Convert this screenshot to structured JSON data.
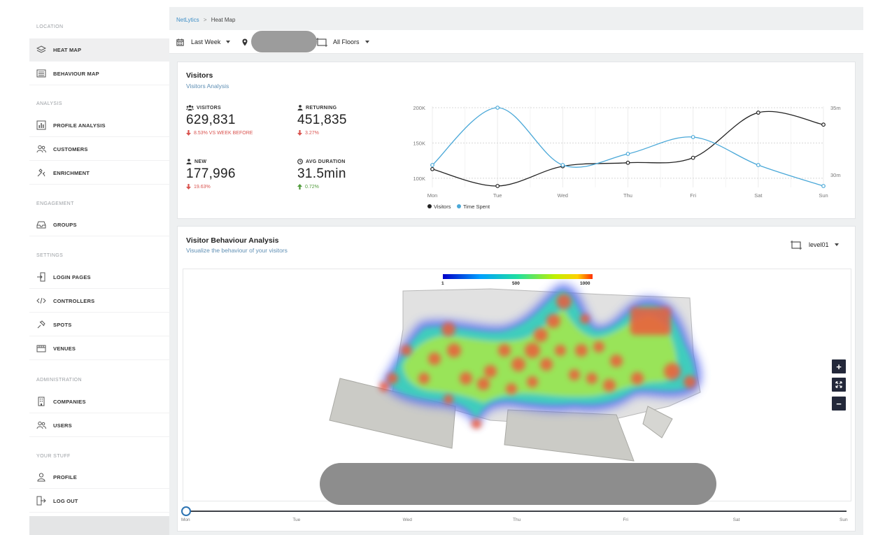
{
  "sidebar": {
    "sections": [
      {
        "title": "LOCATION",
        "items": [
          {
            "label": "HEAT MAP",
            "icon": "layers-icon",
            "active": true
          },
          {
            "label": "BEHAVIOUR MAP",
            "icon": "list-icon"
          }
        ]
      },
      {
        "title": "ANALYSIS",
        "items": [
          {
            "label": "PROFILE ANALYSIS",
            "icon": "bar-chart-icon"
          },
          {
            "label": "CUSTOMERS",
            "icon": "users-icon"
          },
          {
            "label": "ENRICHMENT",
            "icon": "tools-icon"
          }
        ]
      },
      {
        "title": "ENGAGEMENT",
        "items": [
          {
            "label": "GROUPS",
            "icon": "inbox-icon"
          }
        ]
      },
      {
        "title": "SETTINGS",
        "items": [
          {
            "label": "LOGIN PAGES",
            "icon": "login-icon"
          },
          {
            "label": "CONTROLLERS",
            "icon": "code-icon"
          },
          {
            "label": "SPOTS",
            "icon": "pin-icon"
          },
          {
            "label": "VENUES",
            "icon": "store-icon"
          }
        ]
      },
      {
        "title": "ADMINISTRATION",
        "items": [
          {
            "label": "COMPANIES",
            "icon": "building-icon"
          },
          {
            "label": "USERS",
            "icon": "users-icon"
          }
        ]
      },
      {
        "title": "YOUR STUFF",
        "items": [
          {
            "label": "PROFILE",
            "icon": "person-icon"
          },
          {
            "label": "LOG OUT",
            "icon": "logout-icon"
          }
        ]
      }
    ]
  },
  "breadcrumb": {
    "root": "NetLytics",
    "separator": ">",
    "current": "Heat Map"
  },
  "filters": {
    "period": "Last Week",
    "floor": "All Floors"
  },
  "visitors_card": {
    "title": "Visitors",
    "subtitle": "Visitors Analysis",
    "kpis": {
      "visitors": {
        "label": "VISITORS",
        "value": "629,831",
        "delta": "8.53% VS WEEK BEFORE",
        "direction": "down"
      },
      "returning": {
        "label": "RETURNING",
        "value": "451,835",
        "delta": "3.27%",
        "direction": "down"
      },
      "new": {
        "label": "NEW",
        "value": "177,996",
        "delta": "19.63%",
        "direction": "down"
      },
      "avg_duration": {
        "label": "AVG DURATION",
        "value": "31.5min",
        "delta": "0.72%",
        "direction": "up"
      }
    }
  },
  "chart_data": {
    "type": "line",
    "categories": [
      "Mon",
      "Tue",
      "Wed",
      "Thu",
      "Fri",
      "Sat",
      "Sun"
    ],
    "y_left_ticks": [
      "200K",
      "150K",
      "100K"
    ],
    "y_right_ticks": [
      "35m",
      "30m"
    ],
    "ylim_left": [
      87000,
      200000
    ],
    "ylim_right": [
      29300,
      35000
    ],
    "series": [
      {
        "name": "Visitors",
        "color": "#222222",
        "axis": "left",
        "values": [
          113000,
          89000,
          117000,
          122000,
          129000,
          193000,
          176000
        ]
      },
      {
        "name": "Time Spent",
        "color": "#4aa8d8",
        "axis": "right",
        "values": [
          30.9,
          35.0,
          30.9,
          31.7,
          32.9,
          30.9,
          29.4
        ]
      }
    ],
    "legend_position": "bottom",
    "grid": true
  },
  "behaviour_card": {
    "title": "Visitor Behaviour Analysis",
    "subtitle": "Visualize the behaviour of your visitors",
    "level": "level01",
    "scale": {
      "min": "1",
      "mid": "500",
      "max": "1000"
    }
  },
  "timeline": {
    "days": [
      "Mon",
      "Tue",
      "Wed",
      "Thu",
      "Fri",
      "Sat",
      "Sun"
    ],
    "position": 0
  }
}
